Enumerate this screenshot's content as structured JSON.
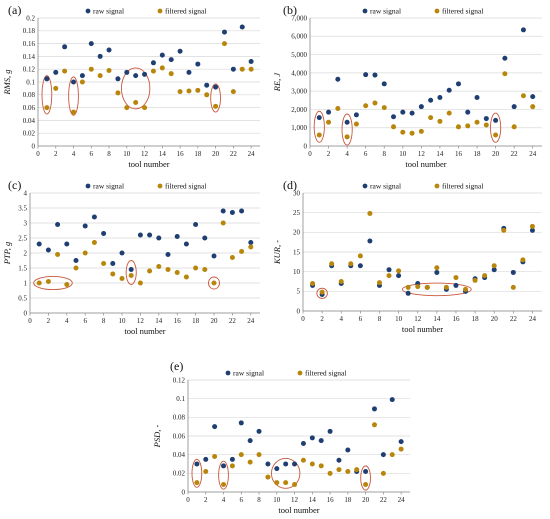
{
  "colors": {
    "raw": "#1f3f73",
    "filtered": "#b8860b",
    "ring": "#c9573a",
    "grid": "#d9d9d9"
  },
  "chart_data": [
    {
      "panel_label": "(a)",
      "type": "scatter",
      "xlabel": "tool number",
      "ylabel": "RMS, g",
      "xticks": [
        0,
        2,
        4,
        6,
        8,
        10,
        12,
        14,
        16,
        18,
        20,
        22,
        24
      ],
      "xlim": [
        0,
        25
      ],
      "ylim": [
        0,
        0.2
      ],
      "yticks": [
        0,
        0.02,
        0.04,
        0.06,
        0.08,
        0.1,
        0.12,
        0.14,
        0.16,
        0.18,
        0.2
      ],
      "ytick_labels": [
        "0",
        "0.02",
        "0.04",
        "0.06",
        "0.08",
        "0.1",
        "0.12",
        "0.14",
        "0.16",
        "0.18",
        "0.2"
      ],
      "grid": "horizontal",
      "legend": [
        "raw signal",
        "filtered signal"
      ],
      "series": [
        {
          "name": "raw signal",
          "color_key": "raw",
          "x": [
            1,
            2,
            3,
            4,
            5,
            6,
            7,
            8,
            9,
            10,
            11,
            12,
            13,
            14,
            15,
            16,
            17,
            18,
            19,
            20,
            21,
            22,
            23,
            24
          ],
          "values": [
            0.105,
            0.115,
            0.155,
            0.1,
            0.11,
            0.16,
            0.14,
            0.15,
            0.105,
            0.115,
            0.11,
            0.112,
            0.13,
            0.142,
            0.135,
            0.148,
            0.115,
            0.128,
            0.095,
            0.092,
            0.178,
            0.12,
            0.186,
            0.132
          ]
        },
        {
          "name": "filtered signal",
          "color_key": "filtered",
          "x": [
            1,
            2,
            3,
            4,
            5,
            6,
            7,
            8,
            9,
            10,
            11,
            12,
            13,
            14,
            15,
            16,
            17,
            18,
            19,
            20,
            21,
            22,
            23,
            24
          ],
          "values": [
            0.06,
            0.09,
            0.117,
            0.053,
            0.1,
            0.12,
            0.11,
            0.118,
            0.083,
            0.06,
            0.068,
            0.06,
            0.117,
            0.122,
            0.113,
            0.085,
            0.086,
            0.087,
            0.08,
            0.062,
            0.16,
            0.085,
            0.12,
            0.12
          ]
        }
      ],
      "highlights": [
        {
          "cx": 1,
          "cy": 0.08,
          "rx": 0.55,
          "ry": 0.03
        },
        {
          "cx": 4,
          "cy": 0.078,
          "rx": 0.55,
          "ry": 0.03
        },
        {
          "cx": 11,
          "cy": 0.09,
          "rx": 1.6,
          "ry": 0.032
        },
        {
          "cx": 20,
          "cy": 0.075,
          "rx": 0.55,
          "ry": 0.022
        }
      ]
    },
    {
      "panel_label": "(b)",
      "type": "scatter",
      "xlabel": "tool number",
      "ylabel": "RE, J",
      "xticks": [
        0,
        2,
        4,
        6,
        8,
        10,
        12,
        14,
        16,
        18,
        20,
        22,
        24
      ],
      "xlim": [
        0,
        25
      ],
      "ylim": [
        0,
        7000
      ],
      "yticks": [
        0,
        1000,
        2000,
        3000,
        4000,
        5000,
        6000,
        7000
      ],
      "ytick_labels": [
        "0",
        "1,000",
        "2,000",
        "3,000",
        "4,000",
        "5,000",
        "6,000",
        "7,000"
      ],
      "grid": "horizontal",
      "legend": [
        "raw signal",
        "filtered signal"
      ],
      "series": [
        {
          "name": "raw signal",
          "color_key": "raw",
          "x": [
            1,
            2,
            3,
            4,
            5,
            6,
            7,
            8,
            9,
            10,
            11,
            12,
            13,
            14,
            15,
            16,
            17,
            18,
            19,
            20,
            21,
            22,
            23,
            24
          ],
          "values": [
            1550,
            1850,
            3650,
            1300,
            1700,
            3900,
            3880,
            3400,
            1600,
            1850,
            1800,
            2150,
            2500,
            2650,
            3050,
            3400,
            1850,
            2650,
            1500,
            1400,
            4800,
            2150,
            6350,
            2700
          ]
        },
        {
          "name": "filtered signal",
          "color_key": "filtered",
          "x": [
            1,
            2,
            3,
            4,
            5,
            6,
            7,
            8,
            9,
            10,
            11,
            12,
            13,
            14,
            15,
            16,
            17,
            18,
            19,
            20,
            21,
            22,
            23,
            24
          ],
          "values": [
            600,
            1300,
            2050,
            500,
            1200,
            2200,
            2350,
            2100,
            1050,
            750,
            700,
            800,
            1550,
            1350,
            1800,
            1050,
            1100,
            1300,
            1150,
            600,
            3950,
            1050,
            2750,
            2150
          ]
        }
      ],
      "highlights": [
        {
          "cx": 1,
          "cy": 1050,
          "rx": 0.55,
          "ry": 850
        },
        {
          "cx": 4,
          "cy": 900,
          "rx": 0.55,
          "ry": 850
        },
        {
          "cx": 20,
          "cy": 1000,
          "rx": 0.55,
          "ry": 800
        }
      ]
    },
    {
      "panel_label": "(c)",
      "type": "scatter",
      "xlabel": "tool number",
      "ylabel": "PTP, g",
      "xticks": [
        0,
        2,
        4,
        6,
        8,
        10,
        12,
        14,
        16,
        18,
        20,
        22,
        24
      ],
      "xlim": [
        0,
        25
      ],
      "ylim": [
        0,
        4
      ],
      "yticks": [
        0,
        0.5,
        1,
        1.5,
        2,
        2.5,
        3,
        3.5,
        4
      ],
      "ytick_labels": [
        "0",
        "0.5",
        "1",
        "1.5",
        "2",
        "2.5",
        "3",
        "3.5",
        "4"
      ],
      "grid": "horizontal",
      "legend": [
        "raw signal",
        "filtered signal"
      ],
      "series": [
        {
          "name": "raw signal",
          "color_key": "raw",
          "x": [
            1,
            2,
            3,
            4,
            5,
            6,
            7,
            8,
            9,
            10,
            11,
            12,
            13,
            14,
            15,
            16,
            17,
            18,
            19,
            20,
            21,
            22,
            23,
            24
          ],
          "values": [
            2.3,
            2.1,
            2.95,
            2.3,
            1.75,
            2.9,
            3.2,
            2.65,
            1.65,
            2.0,
            1.45,
            2.6,
            2.6,
            2.5,
            1.95,
            2.55,
            2.3,
            2.95,
            2.5,
            1.9,
            3.4,
            3.35,
            3.4,
            2.35
          ]
        },
        {
          "name": "filtered signal",
          "color_key": "filtered",
          "x": [
            1,
            2,
            3,
            4,
            5,
            6,
            7,
            8,
            9,
            10,
            11,
            12,
            13,
            14,
            15,
            16,
            17,
            18,
            19,
            20,
            21,
            22,
            23,
            24
          ],
          "values": [
            1.0,
            1.05,
            1.95,
            0.95,
            1.5,
            2.0,
            2.35,
            1.65,
            1.3,
            1.15,
            1.25,
            1.0,
            1.4,
            1.55,
            1.45,
            1.35,
            1.2,
            1.5,
            1.45,
            1.0,
            3.0,
            1.85,
            2.05,
            2.2
          ]
        }
      ],
      "highlights": [
        {
          "cx": 2.5,
          "cy": 1.0,
          "rx": 2.1,
          "ry": 0.22
        },
        {
          "cx": 11,
          "cy": 1.35,
          "rx": 0.55,
          "ry": 0.4
        },
        {
          "cx": 20,
          "cy": 1.0,
          "rx": 0.6,
          "ry": 0.2
        }
      ]
    },
    {
      "panel_label": "(d)",
      "type": "scatter",
      "xlabel": "tool number",
      "ylabel": "KUR, -",
      "xticks": [
        0,
        2,
        4,
        6,
        8,
        10,
        12,
        14,
        16,
        18,
        20,
        22,
        24
      ],
      "xlim": [
        0,
        25
      ],
      "ylim": [
        0,
        30
      ],
      "yticks": [
        0,
        5,
        10,
        15,
        20,
        25,
        30
      ],
      "ytick_labels": [
        "0",
        "5",
        "10",
        "15",
        "20",
        "25",
        "30"
      ],
      "grid": "horizontal",
      "legend": [
        "raw signal",
        "filtered signal"
      ],
      "series": [
        {
          "name": "raw signal",
          "color_key": "raw",
          "x": [
            1,
            2,
            3,
            4,
            5,
            6,
            7,
            8,
            9,
            10,
            11,
            12,
            13,
            14,
            15,
            16,
            17,
            18,
            19,
            20,
            21,
            22,
            23,
            24
          ],
          "values": [
            6.5,
            4.2,
            11.5,
            7.0,
            11.5,
            11.5,
            17.8,
            6.5,
            10.5,
            9.0,
            4.5,
            7.0,
            6.0,
            9.8,
            5.5,
            6.5,
            5.0,
            8.2,
            8.5,
            10.5,
            21.0,
            9.8,
            12.5,
            20.5
          ]
        },
        {
          "name": "filtered signal",
          "color_key": "filtered",
          "x": [
            1,
            2,
            3,
            4,
            5,
            6,
            7,
            8,
            9,
            10,
            11,
            12,
            13,
            14,
            15,
            16,
            17,
            18,
            19,
            20,
            21,
            22,
            23,
            24
          ],
          "values": [
            7.0,
            4.8,
            12.0,
            7.5,
            12.0,
            14.0,
            24.8,
            7.2,
            9.0,
            10.2,
            6.0,
            6.2,
            6.0,
            11.0,
            6.0,
            8.5,
            5.5,
            7.8,
            9.0,
            11.5,
            20.5,
            6.0,
            13.0,
            21.5
          ]
        }
      ],
      "highlights": [
        {
          "cx": 2,
          "cy": 4.5,
          "rx": 0.55,
          "ry": 1.3
        },
        {
          "cx": 14,
          "cy": 5.5,
          "rx": 3.6,
          "ry": 1.6
        }
      ]
    },
    {
      "panel_label": "(e)",
      "type": "scatter",
      "xlabel": "tool number",
      "ylabel": "PSD, -",
      "xticks": [
        0,
        2,
        4,
        6,
        8,
        10,
        12,
        14,
        16,
        18,
        20,
        22,
        24
      ],
      "xlim": [
        0,
        25
      ],
      "ylim": [
        0,
        0.12
      ],
      "yticks": [
        0,
        0.02,
        0.04,
        0.06,
        0.08,
        0.1,
        0.12
      ],
      "ytick_labels": [
        "0",
        "0.02",
        "0.04",
        "0.06",
        "0.08",
        "0.1",
        "0.12"
      ],
      "grid": "horizontal",
      "legend": [
        "raw signal",
        "filtered signal"
      ],
      "series": [
        {
          "name": "raw signal",
          "color_key": "raw",
          "x": [
            1,
            2,
            3,
            4,
            5,
            6,
            7,
            8,
            9,
            10,
            11,
            12,
            13,
            14,
            15,
            16,
            17,
            18,
            19,
            20,
            21,
            22,
            23,
            24
          ],
          "values": [
            0.03,
            0.035,
            0.07,
            0.028,
            0.035,
            0.074,
            0.055,
            0.065,
            0.03,
            0.025,
            0.03,
            0.03,
            0.052,
            0.058,
            0.055,
            0.065,
            0.034,
            0.045,
            0.022,
            0.022,
            0.089,
            0.04,
            0.099,
            0.054
          ]
        },
        {
          "name": "filtered signal",
          "color_key": "filtered",
          "x": [
            1,
            2,
            3,
            4,
            5,
            6,
            7,
            8,
            9,
            10,
            11,
            12,
            13,
            14,
            15,
            16,
            17,
            18,
            19,
            20,
            21,
            22,
            23,
            24
          ],
          "values": [
            0.01,
            0.022,
            0.038,
            0.008,
            0.028,
            0.04,
            0.032,
            0.04,
            0.016,
            0.01,
            0.01,
            0.008,
            0.034,
            0.03,
            0.028,
            0.02,
            0.024,
            0.022,
            0.024,
            0.008,
            0.072,
            0.02,
            0.04,
            0.046
          ]
        }
      ],
      "highlights": [
        {
          "cx": 1,
          "cy": 0.02,
          "rx": 0.55,
          "ry": 0.015
        },
        {
          "cx": 4,
          "cy": 0.018,
          "rx": 0.55,
          "ry": 0.015
        },
        {
          "cx": 11,
          "cy": 0.02,
          "rx": 1.6,
          "ry": 0.016
        },
        {
          "cx": 20,
          "cy": 0.015,
          "rx": 0.55,
          "ry": 0.013
        }
      ]
    }
  ]
}
